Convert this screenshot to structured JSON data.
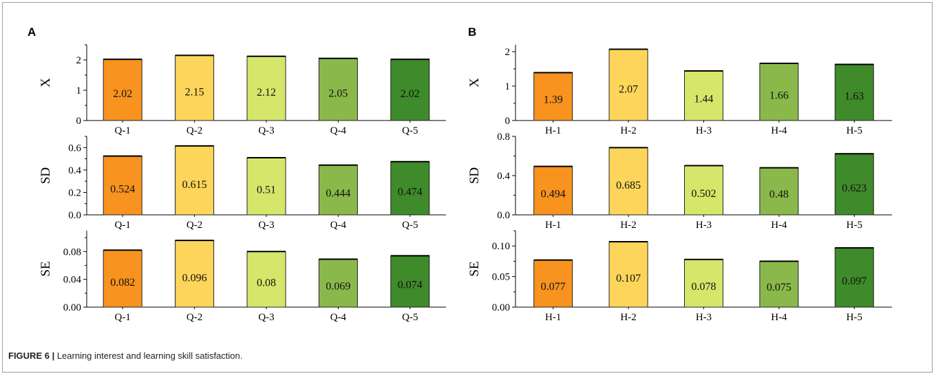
{
  "figure": {
    "caption_label": "FIGURE 6 |",
    "caption_text": " Learning interest and learning skill satisfaction."
  },
  "panels": [
    {
      "letter": "A"
    },
    {
      "letter": "B"
    }
  ],
  "bar_colors": [
    "#f7931e",
    "#fdd55a",
    "#d6e66a",
    "#8ab84a",
    "#3f8a2a"
  ],
  "chart_data": [
    {
      "type": "bar",
      "panel": "A",
      "ylabel": "X",
      "categories": [
        "Q-1",
        "Q-2",
        "Q-3",
        "Q-4",
        "Q-5"
      ],
      "values": [
        2.02,
        2.15,
        2.12,
        2.05,
        2.02
      ],
      "data_labels": [
        "2.02",
        "2.15",
        "2.12",
        "2.05",
        "2.02"
      ],
      "ylim": [
        0,
        2.5
      ],
      "yticks": [
        0,
        1,
        2
      ],
      "ytick_labels": [
        "0",
        "1",
        "2"
      ]
    },
    {
      "type": "bar",
      "panel": "A",
      "ylabel": "SD",
      "categories": [
        "Q-1",
        "Q-2",
        "Q-3",
        "Q-4",
        "Q-5"
      ],
      "values": [
        0.524,
        0.615,
        0.51,
        0.444,
        0.474
      ],
      "data_labels": [
        "0.524",
        "0.615",
        "0.51",
        "0.444",
        "0.474"
      ],
      "ylim": [
        0,
        0.7
      ],
      "yticks": [
        0,
        0.2,
        0.4,
        0.6
      ],
      "ytick_labels": [
        "0.0",
        "0.2",
        "0.4",
        "0.6"
      ]
    },
    {
      "type": "bar",
      "panel": "A",
      "ylabel": "SE",
      "categories": [
        "Q-1",
        "Q-2",
        "Q-3",
        "Q-4",
        "Q-5"
      ],
      "values": [
        0.082,
        0.096,
        0.08,
        0.069,
        0.074
      ],
      "data_labels": [
        "0.082",
        "0.096",
        "0.08",
        "0.069",
        "0.074"
      ],
      "ylim": [
        0,
        0.11
      ],
      "yticks": [
        0,
        0.04,
        0.08
      ],
      "ytick_labels": [
        "0.00",
        "0.04",
        "0.08"
      ]
    },
    {
      "type": "bar",
      "panel": "B",
      "ylabel": "X",
      "categories": [
        "H-1",
        "H-2",
        "H-3",
        "H-4",
        "H-5"
      ],
      "values": [
        1.39,
        2.07,
        1.44,
        1.66,
        1.63
      ],
      "data_labels": [
        "1.39",
        "2.07",
        "1.44",
        "1.66",
        "1.63"
      ],
      "ylim": [
        0,
        2.2
      ],
      "yticks": [
        0,
        1,
        2
      ],
      "ytick_labels": [
        "0",
        "1",
        "2"
      ]
    },
    {
      "type": "bar",
      "panel": "B",
      "ylabel": "SD",
      "categories": [
        "H-1",
        "H-2",
        "H-3",
        "H-4",
        "H-5"
      ],
      "values": [
        0.494,
        0.685,
        0.502,
        0.48,
        0.623
      ],
      "data_labels": [
        "0.494",
        "0.685",
        "0.502",
        "0.48",
        "0.623"
      ],
      "ylim": [
        0,
        0.8
      ],
      "yticks": [
        0,
        0.4,
        0.8
      ],
      "ytick_labels": [
        "0.0",
        "0.4",
        "0.8"
      ]
    },
    {
      "type": "bar",
      "panel": "B",
      "ylabel": "SE",
      "categories": [
        "H-1",
        "H-2",
        "H-3",
        "H-4",
        "H-5"
      ],
      "values": [
        0.077,
        0.107,
        0.078,
        0.075,
        0.097
      ],
      "data_labels": [
        "0.077",
        "0.107",
        "0.078",
        "0.075",
        "0.097"
      ],
      "ylim": [
        0,
        0.125
      ],
      "yticks": [
        0,
        0.05,
        0.1
      ],
      "ytick_labels": [
        "0.00",
        "0.05",
        "0.10"
      ]
    }
  ]
}
